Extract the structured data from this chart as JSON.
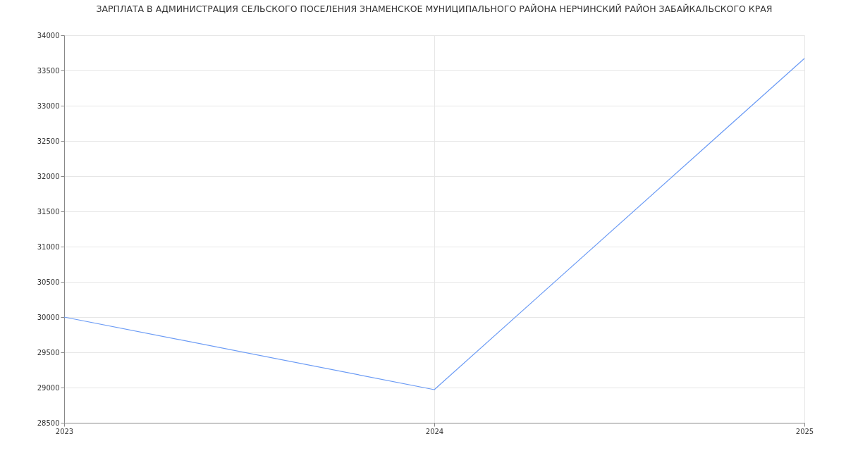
{
  "chart_data": {
    "type": "line",
    "title": "ЗАРПЛАТА В АДМИНИСТРАЦИЯ СЕЛЬСКОГО ПОСЕЛЕНИЯ ЗНАМЕНСКОЕ МУНИЦИПАЛЬНОГО РАЙОНА НЕРЧИНСКИЙ РАЙОН ЗАБАЙКАЛЬСКОГО КРАЯ",
    "x": [
      2023,
      2024,
      2025
    ],
    "series": [
      {
        "color": "#6b9bf5",
        "values": [
          30000,
          28970,
          33670
        ]
      }
    ],
    "xlim": [
      2023,
      2025
    ],
    "xticks": [
      2023,
      2024,
      2025
    ],
    "ylim": [
      28500,
      34000
    ],
    "yticks": [
      28500,
      29000,
      29500,
      30000,
      30500,
      31000,
      31500,
      32000,
      32500,
      33000,
      33500,
      34000
    ],
    "grid": true,
    "marker": "none",
    "line_style": "solid"
  }
}
